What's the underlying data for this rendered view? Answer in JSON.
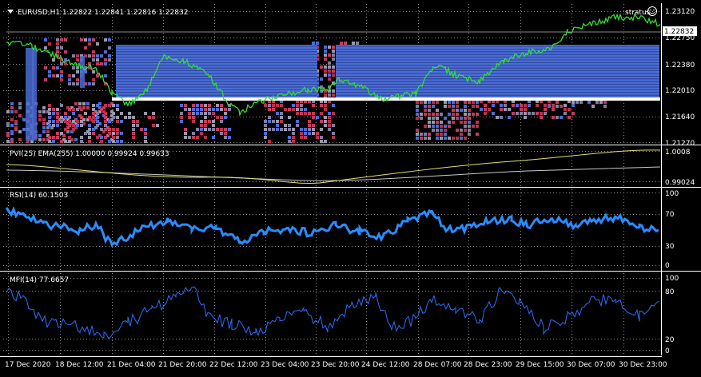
{
  "main": {
    "symbol_header": "EURUSD,H1  1.22822 1.22841 1.22816 1.22832",
    "expert_name": "stratus",
    "current_price_tag": "1.22832",
    "price_scale": [
      "1.23120",
      "1.22750",
      "1.22380",
      "1.22010",
      "1.21640",
      "1.21270"
    ]
  },
  "pvi": {
    "header": "PVI(25)  EMA(255) 1.00000 0.99924 0.99633",
    "scale": [
      "1.0008",
      "0.99024"
    ]
  },
  "rsi": {
    "header": "RSI(14) 60.1503",
    "scale": [
      "100",
      "70",
      "30",
      "0"
    ]
  },
  "mfi": {
    "header": "MFI(14) 77.6657",
    "scale": [
      "100",
      "80",
      "20",
      "0"
    ]
  },
  "time_axis": [
    "17 Dec 2020",
    "18 Dec 12:00",
    "21 Dec 04:00",
    "21 Dec 20:00",
    "22 Dec 12:00",
    "23 Dec 04:00",
    "23 Dec 20:00",
    "24 Dec 12:00",
    "28 Dec 07:00",
    "28 Dec 23:00",
    "29 Dec 15:00",
    "30 Dec 07:00",
    "30 Dec 23:00"
  ],
  "colors": {
    "background": "#000000",
    "grid": "#c0c0c0",
    "separator": "#ffffff",
    "price_line": "#33dd33",
    "zone_blue": "#4a6cd4",
    "cell_red": "#b8304a",
    "cell_gray": "#9898a8",
    "pvi_line": "#e8e070",
    "ema_line": "#c8c8c8",
    "rsi_line": "#2a8cff",
    "mfi_line": "#2a70ff"
  },
  "icons": {
    "menu": "triangle-down-icon",
    "expert": "smiley-icon"
  }
}
